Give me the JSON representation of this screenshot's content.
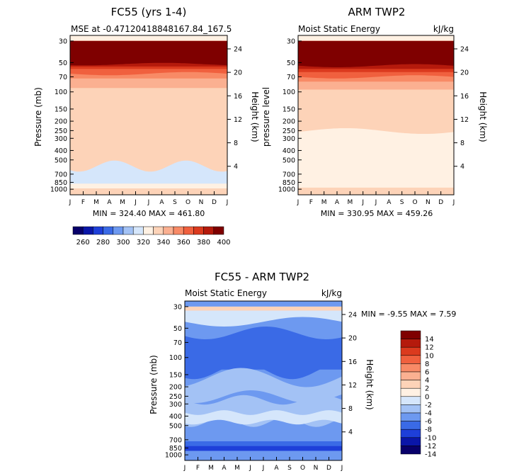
{
  "colors": {
    "scale": [
      "#08006a",
      "#0a16a8",
      "#1e3fd9",
      "#3a6ae6",
      "#6d99f0",
      "#a3c2f5",
      "#d5e6fb",
      "#fff1e3",
      "#fdd3b8",
      "#fbb091",
      "#f88a66",
      "#f0603e",
      "#db3a1e",
      "#b51a0c",
      "#7f0000"
    ],
    "axis": "#000000"
  },
  "panel_left": {
    "title": "FC55 (yrs 1-4)",
    "subtitle": "MSE at -0.47120418848167.84_167.5",
    "units": "",
    "stats": "MIN = 324.40 MAX = 461.80"
  },
  "panel_right": {
    "title": "ARM TWP2",
    "subtitle": "Moist Static Energy",
    "units": "kJ/kg",
    "stats": "MIN = 330.95 MAX = 459.26"
  },
  "panel_diff": {
    "title": "FC55 - ARM TWP2",
    "subtitle": "Moist Static Energy",
    "units": "kJ/kg",
    "stats": "MIN = -9.55 MAX = 7.59"
  },
  "axis_labels": {
    "pressure": "Pressure (mb)",
    "pressure_level": "pressure level",
    "height": "Height (km)"
  },
  "chart_data": [
    {
      "type": "heatmap",
      "title": "FC55 (yrs 1-4)",
      "subtitle": "MSE at -0.47120418848167.84_167.5",
      "x": [
        "J",
        "F",
        "M",
        "A",
        "M",
        "J",
        "J",
        "A",
        "S",
        "O",
        "N",
        "D",
        "J"
      ],
      "y_left_ticks": [
        30,
        50,
        70,
        100,
        150,
        200,
        250,
        300,
        400,
        500,
        700,
        850,
        1000
      ],
      "y_right_ticks": [
        24,
        20,
        16,
        12,
        8,
        4
      ],
      "ylabel": "Pressure (mb)",
      "ylabel_right": "Height (km)",
      "min": 324.4,
      "max": 461.8,
      "colorbar_labels": [
        260,
        280,
        300,
        320,
        340,
        360,
        380,
        400
      ]
    },
    {
      "type": "heatmap",
      "title": "ARM TWP2",
      "subtitle": "Moist Static Energy",
      "units": "kJ/kg",
      "x": [
        "J",
        "F",
        "M",
        "A",
        "M",
        "J",
        "J",
        "A",
        "S",
        "O",
        "N",
        "D",
        "J"
      ],
      "y_left_ticks": [
        30,
        50,
        70,
        100,
        150,
        200,
        250,
        300,
        400,
        500,
        700,
        850,
        1000
      ],
      "y_right_ticks": [
        24,
        20,
        16,
        12,
        8,
        4
      ],
      "ylabel": "pressure level",
      "ylabel_right": "Height (km)",
      "min": 330.95,
      "max": 459.26,
      "colorbar_labels": [
        260,
        280,
        300,
        320,
        340,
        360,
        380,
        400
      ]
    },
    {
      "type": "heatmap",
      "title": "FC55 - ARM TWP2",
      "subtitle": "Moist Static Energy",
      "units": "kJ/kg",
      "x": [
        "J",
        "F",
        "M",
        "A",
        "M",
        "J",
        "J",
        "A",
        "S",
        "O",
        "N",
        "D",
        "J"
      ],
      "y_left_ticks": [
        30,
        50,
        70,
        100,
        150,
        200,
        250,
        300,
        400,
        500,
        700,
        850,
        1000
      ],
      "y_right_ticks": [
        24,
        20,
        16,
        12,
        8,
        4
      ],
      "ylabel": "Pressure (mb)",
      "ylabel_right": "Height (km)",
      "min": -9.55,
      "max": 7.59,
      "colorbar_labels": [
        14,
        12,
        10,
        8,
        6,
        4,
        2,
        0,
        -2,
        -4,
        -6,
        -8,
        -10,
        -12,
        -14
      ]
    }
  ],
  "colorbar_top": {
    "labels": [
      "260",
      "280",
      "300",
      "320",
      "340",
      "360",
      "380",
      "400"
    ]
  },
  "colorbar_diff": {
    "labels": [
      "14",
      "12",
      "10",
      "8",
      "6",
      "4",
      "2",
      "0",
      "-2",
      "-4",
      "-6",
      "-8",
      "-10",
      "-12",
      "-14"
    ]
  }
}
